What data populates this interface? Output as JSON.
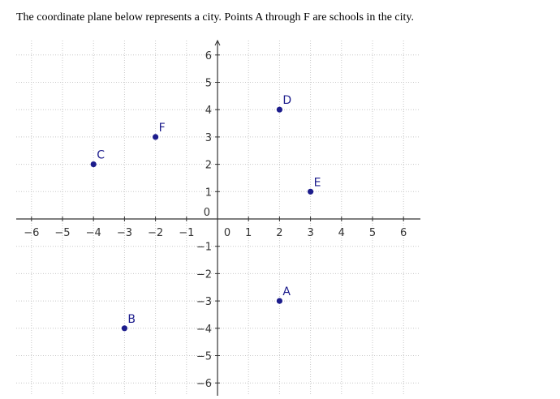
{
  "question": {
    "text": "The coordinate plane below represents a city. Points A through F are schools in the city."
  },
  "chart_data": {
    "type": "scatter",
    "xlim": [
      -6,
      6
    ],
    "ylim": [
      -6,
      6
    ],
    "grid": true,
    "grid_style": "dotted",
    "x_ticks": [
      -6,
      -5,
      -4,
      -3,
      -2,
      -1,
      0,
      1,
      2,
      3,
      4,
      5,
      6
    ],
    "y_ticks": [
      -6,
      -5,
      -4,
      -3,
      -2,
      -1,
      0,
      1,
      2,
      3,
      4,
      5,
      6
    ],
    "point_color": "#1c1c8c",
    "points": [
      {
        "label": "A",
        "x": 2,
        "y": -3
      },
      {
        "label": "B",
        "x": -3,
        "y": -4
      },
      {
        "label": "C",
        "x": -4,
        "y": 2
      },
      {
        "label": "D",
        "x": 2,
        "y": 4
      },
      {
        "label": "E",
        "x": 3,
        "y": 1
      },
      {
        "label": "F",
        "x": -2,
        "y": 3
      }
    ]
  }
}
